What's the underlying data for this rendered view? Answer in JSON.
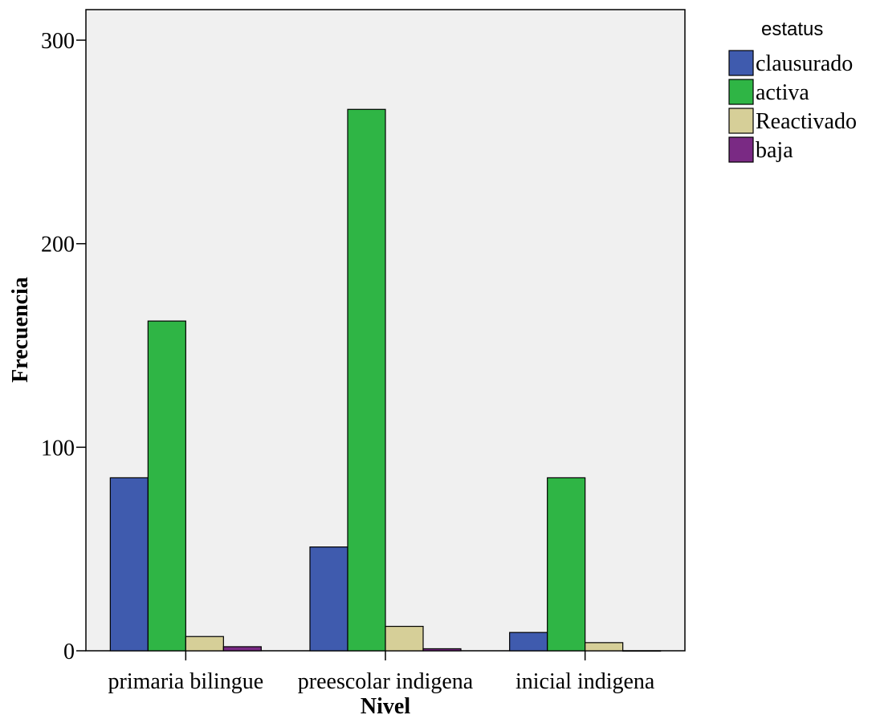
{
  "chart_data": {
    "type": "bar",
    "xlabel": "Nivel",
    "ylabel": "Frecuencia",
    "categories": [
      "primaria bilingue",
      "preescolar indigena",
      "inicial indigena"
    ],
    "legend_title": "estatus",
    "legend_position": "top-right",
    "ylim": [
      0,
      315
    ],
    "yticks": [
      0,
      100,
      200,
      300
    ],
    "grid": false,
    "series": [
      {
        "name": "clausurado",
        "color": "#3F5BAE",
        "values": [
          85,
          51,
          9
        ]
      },
      {
        "name": "activa",
        "color": "#2FB545",
        "values": [
          162,
          266,
          85
        ]
      },
      {
        "name": "Reactivado",
        "color": "#D6CF98",
        "values": [
          7,
          12,
          4
        ]
      },
      {
        "name": "baja",
        "color": "#7A2A84",
        "values": [
          2,
          1,
          0
        ]
      }
    ]
  }
}
